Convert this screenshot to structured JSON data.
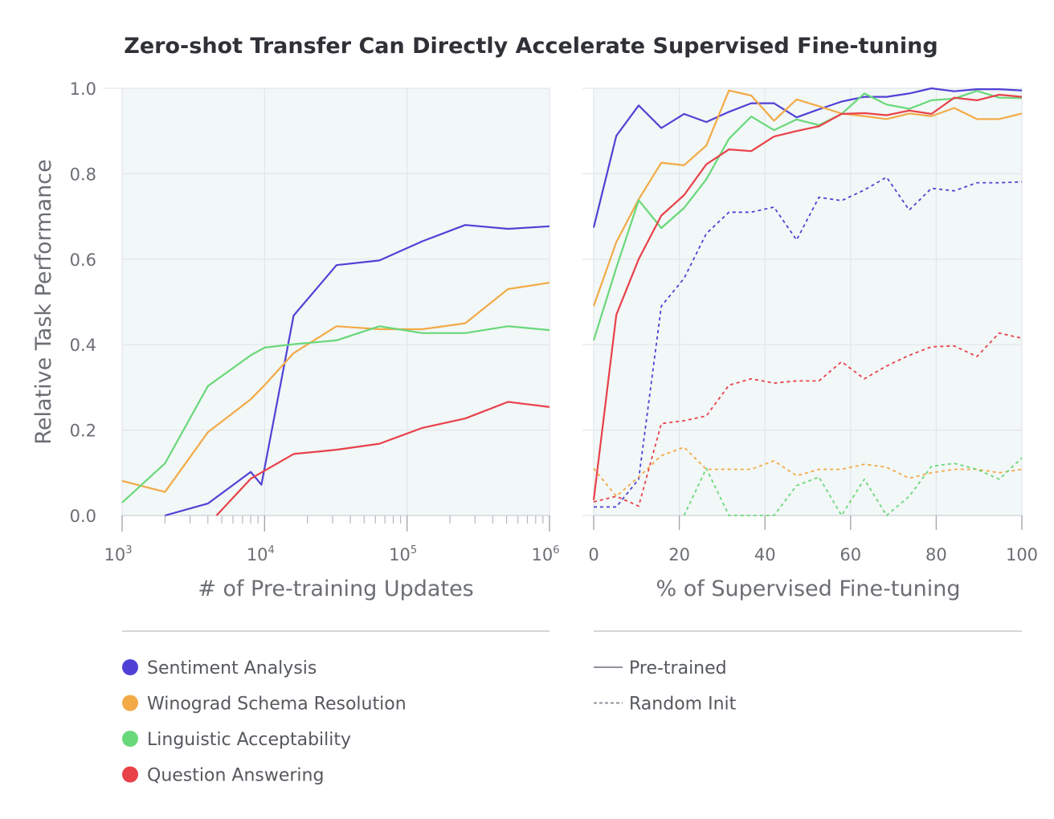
{
  "title": "Zero-shot Transfer Can Directly Accelerate Supervised Fine-tuning",
  "colors": {
    "sentiment": "#5041d6",
    "winograd": "#f2aa46",
    "linguistic": "#69d87a",
    "qa": "#e84149",
    "panel_bg": "#f2f7f7",
    "grid": "#e2e6e8",
    "axis_text": "#6b6e73",
    "separator": "#c8cacc",
    "style_line": "#8e929b"
  },
  "legend": {
    "tasks": [
      {
        "label": "Sentiment Analysis",
        "color_key": "sentiment"
      },
      {
        "label": "Winograd Schema Resolution",
        "color_key": "winograd"
      },
      {
        "label": "Linguistic Acceptability",
        "color_key": "linguistic"
      },
      {
        "label": "Question Answering",
        "color_key": "qa"
      }
    ],
    "styles": [
      {
        "label": "Pre-trained",
        "style": "solid"
      },
      {
        "label": "Random Init",
        "style": "dashed"
      }
    ]
  },
  "chart_data": [
    {
      "type": "line",
      "panel": "left",
      "xlabel": "# of Pre-training Updates",
      "ylabel": "Relative Task Performance",
      "xscale": "log",
      "xlim": [
        1000,
        1000000
      ],
      "ylim": [
        0.0,
        1.0
      ],
      "xtick_labels": [
        {
          "base": "10",
          "exp": "3"
        },
        {
          "base": "10",
          "exp": "4"
        },
        {
          "base": "10",
          "exp": "5"
        },
        {
          "base": "10",
          "exp": "6"
        }
      ],
      "ytick_labels": [
        "0.0",
        "0.2",
        "0.4",
        "0.6",
        "0.8",
        "1.0"
      ],
      "series": [
        {
          "task": "Sentiment Analysis",
          "color_key": "sentiment",
          "style": "solid",
          "points": [
            [
              2000,
              0.0
            ],
            [
              4000,
              0.028
            ],
            [
              8000,
              0.102
            ],
            [
              9500,
              0.072
            ],
            [
              16000,
              0.468
            ],
            [
              32000,
              0.586
            ],
            [
              64000,
              0.597
            ],
            [
              128000,
              0.642
            ],
            [
              256000,
              0.68
            ],
            [
              512000,
              0.671
            ],
            [
              1000000,
              0.677
            ]
          ]
        },
        {
          "task": "Winograd Schema Resolution",
          "color_key": "winograd",
          "style": "solid",
          "points": [
            [
              1000,
              0.081
            ],
            [
              2000,
              0.055
            ],
            [
              4000,
              0.195
            ],
            [
              8000,
              0.272
            ],
            [
              10000,
              0.305
            ],
            [
              16000,
              0.38
            ],
            [
              32000,
              0.443
            ],
            [
              64000,
              0.436
            ],
            [
              128000,
              0.436
            ],
            [
              256000,
              0.45
            ],
            [
              512000,
              0.53
            ],
            [
              1000000,
              0.545
            ]
          ]
        },
        {
          "task": "Linguistic Acceptability",
          "color_key": "linguistic",
          "style": "solid",
          "points": [
            [
              1000,
              0.03
            ],
            [
              2000,
              0.122
            ],
            [
              4000,
              0.303
            ],
            [
              8000,
              0.375
            ],
            [
              10000,
              0.393
            ],
            [
              16000,
              0.401
            ],
            [
              32000,
              0.41
            ],
            [
              64000,
              0.443
            ],
            [
              128000,
              0.427
            ],
            [
              256000,
              0.427
            ],
            [
              512000,
              0.443
            ],
            [
              1000000,
              0.434
            ]
          ]
        },
        {
          "task": "Question Answering",
          "color_key": "qa",
          "style": "solid",
          "points": [
            [
              4600,
              0.0
            ],
            [
              8000,
              0.086
            ],
            [
              16000,
              0.144
            ],
            [
              32000,
              0.154
            ],
            [
              64000,
              0.168
            ],
            [
              128000,
              0.205
            ],
            [
              256000,
              0.227
            ],
            [
              512000,
              0.266
            ],
            [
              1000000,
              0.254
            ]
          ]
        }
      ]
    },
    {
      "type": "line",
      "panel": "right",
      "xlabel": "% of Supervised Fine-tuning",
      "ylabel": "",
      "xlim": [
        0,
        100
      ],
      "ylim": [
        0.0,
        1.0
      ],
      "xtick_labels": [
        "0",
        "20",
        "40",
        "60",
        "80",
        "100"
      ],
      "ytick_labels": [
        "0.0",
        "0.2",
        "0.4",
        "0.6",
        "0.8",
        "1.0"
      ],
      "series": [
        {
          "task": "Sentiment Analysis",
          "color_key": "sentiment",
          "style": "solid",
          "points": [
            [
              0,
              0.674
            ],
            [
              5.3,
              0.889
            ],
            [
              10.5,
              0.96
            ],
            [
              15.8,
              0.907
            ],
            [
              21.1,
              0.94
            ],
            [
              26.3,
              0.921
            ],
            [
              31.6,
              0.945
            ],
            [
              36.8,
              0.965
            ],
            [
              42.1,
              0.965
            ],
            [
              47.4,
              0.932
            ],
            [
              52.6,
              0.951
            ],
            [
              57.9,
              0.969
            ],
            [
              63.2,
              0.98
            ],
            [
              68.4,
              0.98
            ],
            [
              73.7,
              0.988
            ],
            [
              78.9,
              1.0
            ],
            [
              84.2,
              0.993
            ],
            [
              89.5,
              0.998
            ],
            [
              94.7,
              0.998
            ],
            [
              100,
              0.995
            ]
          ]
        },
        {
          "task": "Winograd Schema Resolution",
          "color_key": "winograd",
          "style": "solid",
          "points": [
            [
              0,
              0.49
            ],
            [
              5.3,
              0.64
            ],
            [
              10.5,
              0.74
            ],
            [
              15.8,
              0.826
            ],
            [
              21.1,
              0.82
            ],
            [
              26.3,
              0.866
            ],
            [
              31.6,
              0.995
            ],
            [
              36.8,
              0.983
            ],
            [
              42.1,
              0.924
            ],
            [
              47.4,
              0.974
            ],
            [
              52.6,
              0.958
            ],
            [
              57.9,
              0.941
            ],
            [
              63.2,
              0.935
            ],
            [
              68.4,
              0.928
            ],
            [
              73.7,
              0.941
            ],
            [
              78.9,
              0.935
            ],
            [
              84.2,
              0.954
            ],
            [
              89.5,
              0.928
            ],
            [
              94.7,
              0.928
            ],
            [
              100,
              0.941
            ]
          ]
        },
        {
          "task": "Linguistic Acceptability",
          "color_key": "linguistic",
          "style": "solid",
          "points": [
            [
              0,
              0.41
            ],
            [
              5.3,
              0.58
            ],
            [
              10.5,
              0.738
            ],
            [
              15.8,
              0.673
            ],
            [
              21.1,
              0.72
            ],
            [
              26.3,
              0.787
            ],
            [
              31.6,
              0.882
            ],
            [
              36.8,
              0.934
            ],
            [
              42.1,
              0.902
            ],
            [
              47.4,
              0.927
            ],
            [
              52.6,
              0.914
            ],
            [
              57.9,
              0.94
            ],
            [
              63.2,
              0.988
            ],
            [
              68.4,
              0.962
            ],
            [
              73.7,
              0.952
            ],
            [
              78.9,
              0.972
            ],
            [
              84.2,
              0.976
            ],
            [
              89.5,
              0.994
            ],
            [
              94.7,
              0.978
            ],
            [
              100,
              0.977
            ]
          ]
        },
        {
          "task": "Question Answering",
          "color_key": "qa",
          "style": "solid",
          "points": [
            [
              0,
              0.036
            ],
            [
              5.3,
              0.47
            ],
            [
              10.5,
              0.6
            ],
            [
              15.8,
              0.702
            ],
            [
              21.1,
              0.75
            ],
            [
              26.3,
              0.822
            ],
            [
              31.6,
              0.857
            ],
            [
              36.8,
              0.853
            ],
            [
              42.1,
              0.887
            ],
            [
              47.4,
              0.9
            ],
            [
              52.6,
              0.911
            ],
            [
              57.9,
              0.94
            ],
            [
              63.2,
              0.942
            ],
            [
              68.4,
              0.937
            ],
            [
              73.7,
              0.948
            ],
            [
              78.9,
              0.94
            ],
            [
              84.2,
              0.978
            ],
            [
              89.5,
              0.972
            ],
            [
              94.7,
              0.985
            ],
            [
              100,
              0.98
            ]
          ]
        },
        {
          "task": "Sentiment Analysis",
          "color_key": "sentiment",
          "style": "dashed",
          "points": [
            [
              0,
              0.02
            ],
            [
              5.3,
              0.02
            ],
            [
              10.5,
              0.085
            ],
            [
              15.8,
              0.49
            ],
            [
              21.1,
              0.555
            ],
            [
              26.3,
              0.66
            ],
            [
              31.6,
              0.71
            ],
            [
              36.8,
              0.71
            ],
            [
              42.1,
              0.722
            ],
            [
              47.4,
              0.645
            ],
            [
              52.6,
              0.745
            ],
            [
              57.9,
              0.737
            ],
            [
              63.2,
              0.762
            ],
            [
              68.4,
              0.792
            ],
            [
              73.7,
              0.715
            ],
            [
              78.9,
              0.766
            ],
            [
              84.2,
              0.76
            ],
            [
              89.5,
              0.779
            ],
            [
              94.7,
              0.779
            ],
            [
              100,
              0.781
            ]
          ]
        },
        {
          "task": "Winograd Schema Resolution",
          "color_key": "winograd",
          "style": "dashed",
          "points": [
            [
              0,
              0.11
            ],
            [
              5.3,
              0.045
            ],
            [
              10.5,
              0.09
            ],
            [
              15.8,
              0.14
            ],
            [
              21.1,
              0.16
            ],
            [
              26.3,
              0.108
            ],
            [
              31.6,
              0.108
            ],
            [
              36.8,
              0.108
            ],
            [
              42.1,
              0.128
            ],
            [
              47.4,
              0.093
            ],
            [
              52.6,
              0.108
            ],
            [
              57.9,
              0.108
            ],
            [
              63.2,
              0.12
            ],
            [
              68.4,
              0.113
            ],
            [
              73.7,
              0.087
            ],
            [
              78.9,
              0.1
            ],
            [
              84.2,
              0.108
            ],
            [
              89.5,
              0.108
            ],
            [
              94.7,
              0.1
            ],
            [
              100,
              0.108
            ]
          ]
        },
        {
          "task": "Linguistic Acceptability",
          "color_key": "linguistic",
          "style": "dashed",
          "points": [
            [
              21.1,
              0.0
            ],
            [
              26.3,
              0.11
            ],
            [
              31.6,
              0.0
            ],
            [
              42.1,
              0.0
            ],
            [
              47.4,
              0.07
            ],
            [
              52.6,
              0.09
            ],
            [
              57.9,
              0.0
            ],
            [
              63.2,
              0.085
            ],
            [
              68.4,
              0.0
            ],
            [
              73.7,
              0.045
            ],
            [
              78.9,
              0.115
            ],
            [
              84.2,
              0.122
            ],
            [
              89.5,
              0.108
            ],
            [
              94.7,
              0.085
            ],
            [
              100,
              0.135
            ]
          ]
        },
        {
          "task": "Question Answering",
          "color_key": "qa",
          "style": "dashed",
          "points": [
            [
              0,
              0.032
            ],
            [
              5.3,
              0.045
            ],
            [
              10.5,
              0.022
            ],
            [
              15.8,
              0.215
            ],
            [
              21.1,
              0.222
            ],
            [
              26.3,
              0.233
            ],
            [
              31.6,
              0.305
            ],
            [
              36.8,
              0.32
            ],
            [
              42.1,
              0.31
            ],
            [
              47.4,
              0.315
            ],
            [
              52.6,
              0.315
            ],
            [
              57.9,
              0.36
            ],
            [
              63.2,
              0.32
            ],
            [
              68.4,
              0.35
            ],
            [
              73.7,
              0.375
            ],
            [
              78.9,
              0.395
            ],
            [
              84.2,
              0.397
            ],
            [
              89.5,
              0.372
            ],
            [
              94.7,
              0.427
            ],
            [
              100,
              0.415
            ]
          ]
        }
      ]
    }
  ]
}
